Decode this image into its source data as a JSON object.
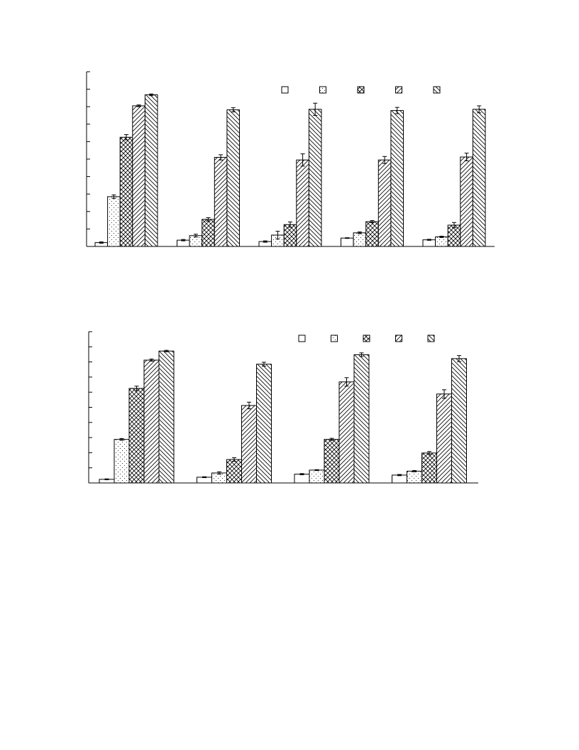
{
  "chart_data": [
    {
      "type": "bar",
      "title": "",
      "xlabel": "",
      "ylabel": "",
      "ylim": [
        0,
        10
      ],
      "yticks": 10,
      "categories": [
        "",
        "",
        "",
        "",
        ""
      ],
      "legend": {
        "placement": "top-right",
        "labels": [
          "",
          "",
          "",
          "",
          ""
        ]
      },
      "series": [
        {
          "pattern": "empty",
          "values": [
            0.22,
            0.36,
            0.28,
            0.48,
            0.38
          ],
          "errors": [
            0.04,
            0.04,
            0.04,
            0.02,
            0.03
          ]
        },
        {
          "pattern": "dots",
          "values": [
            2.85,
            0.62,
            0.65,
            0.78,
            0.55
          ],
          "errors": [
            0.1,
            0.08,
            0.22,
            0.05,
            0.04
          ]
        },
        {
          "pattern": "crosshatch",
          "values": [
            6.25,
            1.55,
            1.25,
            1.42,
            1.22
          ],
          "errors": [
            0.15,
            0.1,
            0.15,
            0.06,
            0.15
          ]
        },
        {
          "pattern": "diag-right",
          "values": [
            8.05,
            5.1,
            4.95,
            4.95,
            5.12
          ],
          "errors": [
            0.05,
            0.15,
            0.35,
            0.2,
            0.22
          ]
        },
        {
          "pattern": "diag-left",
          "values": [
            8.68,
            7.82,
            7.85,
            7.78,
            7.85
          ],
          "errors": [
            0.05,
            0.12,
            0.35,
            0.18,
            0.2
          ]
        }
      ]
    },
    {
      "type": "bar",
      "title": "",
      "xlabel": "",
      "ylabel": "",
      "ylim": [
        0,
        10
      ],
      "yticks": 10,
      "categories": [
        "",
        "",
        "",
        ""
      ],
      "legend": {
        "placement": "top-right",
        "labels": [
          "",
          "",
          "",
          "",
          ""
        ]
      },
      "series": [
        {
          "pattern": "empty",
          "values": [
            0.24,
            0.38,
            0.58,
            0.52
          ],
          "errors": [
            0.03,
            0.03,
            0.04,
            0.04
          ]
        },
        {
          "pattern": "dots",
          "values": [
            2.88,
            0.66,
            0.85,
            0.78
          ],
          "errors": [
            0.06,
            0.08,
            0.03,
            0.04
          ]
        },
        {
          "pattern": "crosshatch",
          "values": [
            6.25,
            1.55,
            2.88,
            1.98
          ],
          "errors": [
            0.15,
            0.12,
            0.07,
            0.1
          ]
        },
        {
          "pattern": "diag-right",
          "values": [
            8.12,
            5.12,
            6.68,
            5.88
          ],
          "errors": [
            0.07,
            0.22,
            0.28,
            0.28
          ]
        },
        {
          "pattern": "diag-left",
          "values": [
            8.72,
            7.85,
            8.48,
            8.22
          ],
          "errors": [
            0.05,
            0.13,
            0.12,
            0.2
          ]
        }
      ]
    }
  ]
}
